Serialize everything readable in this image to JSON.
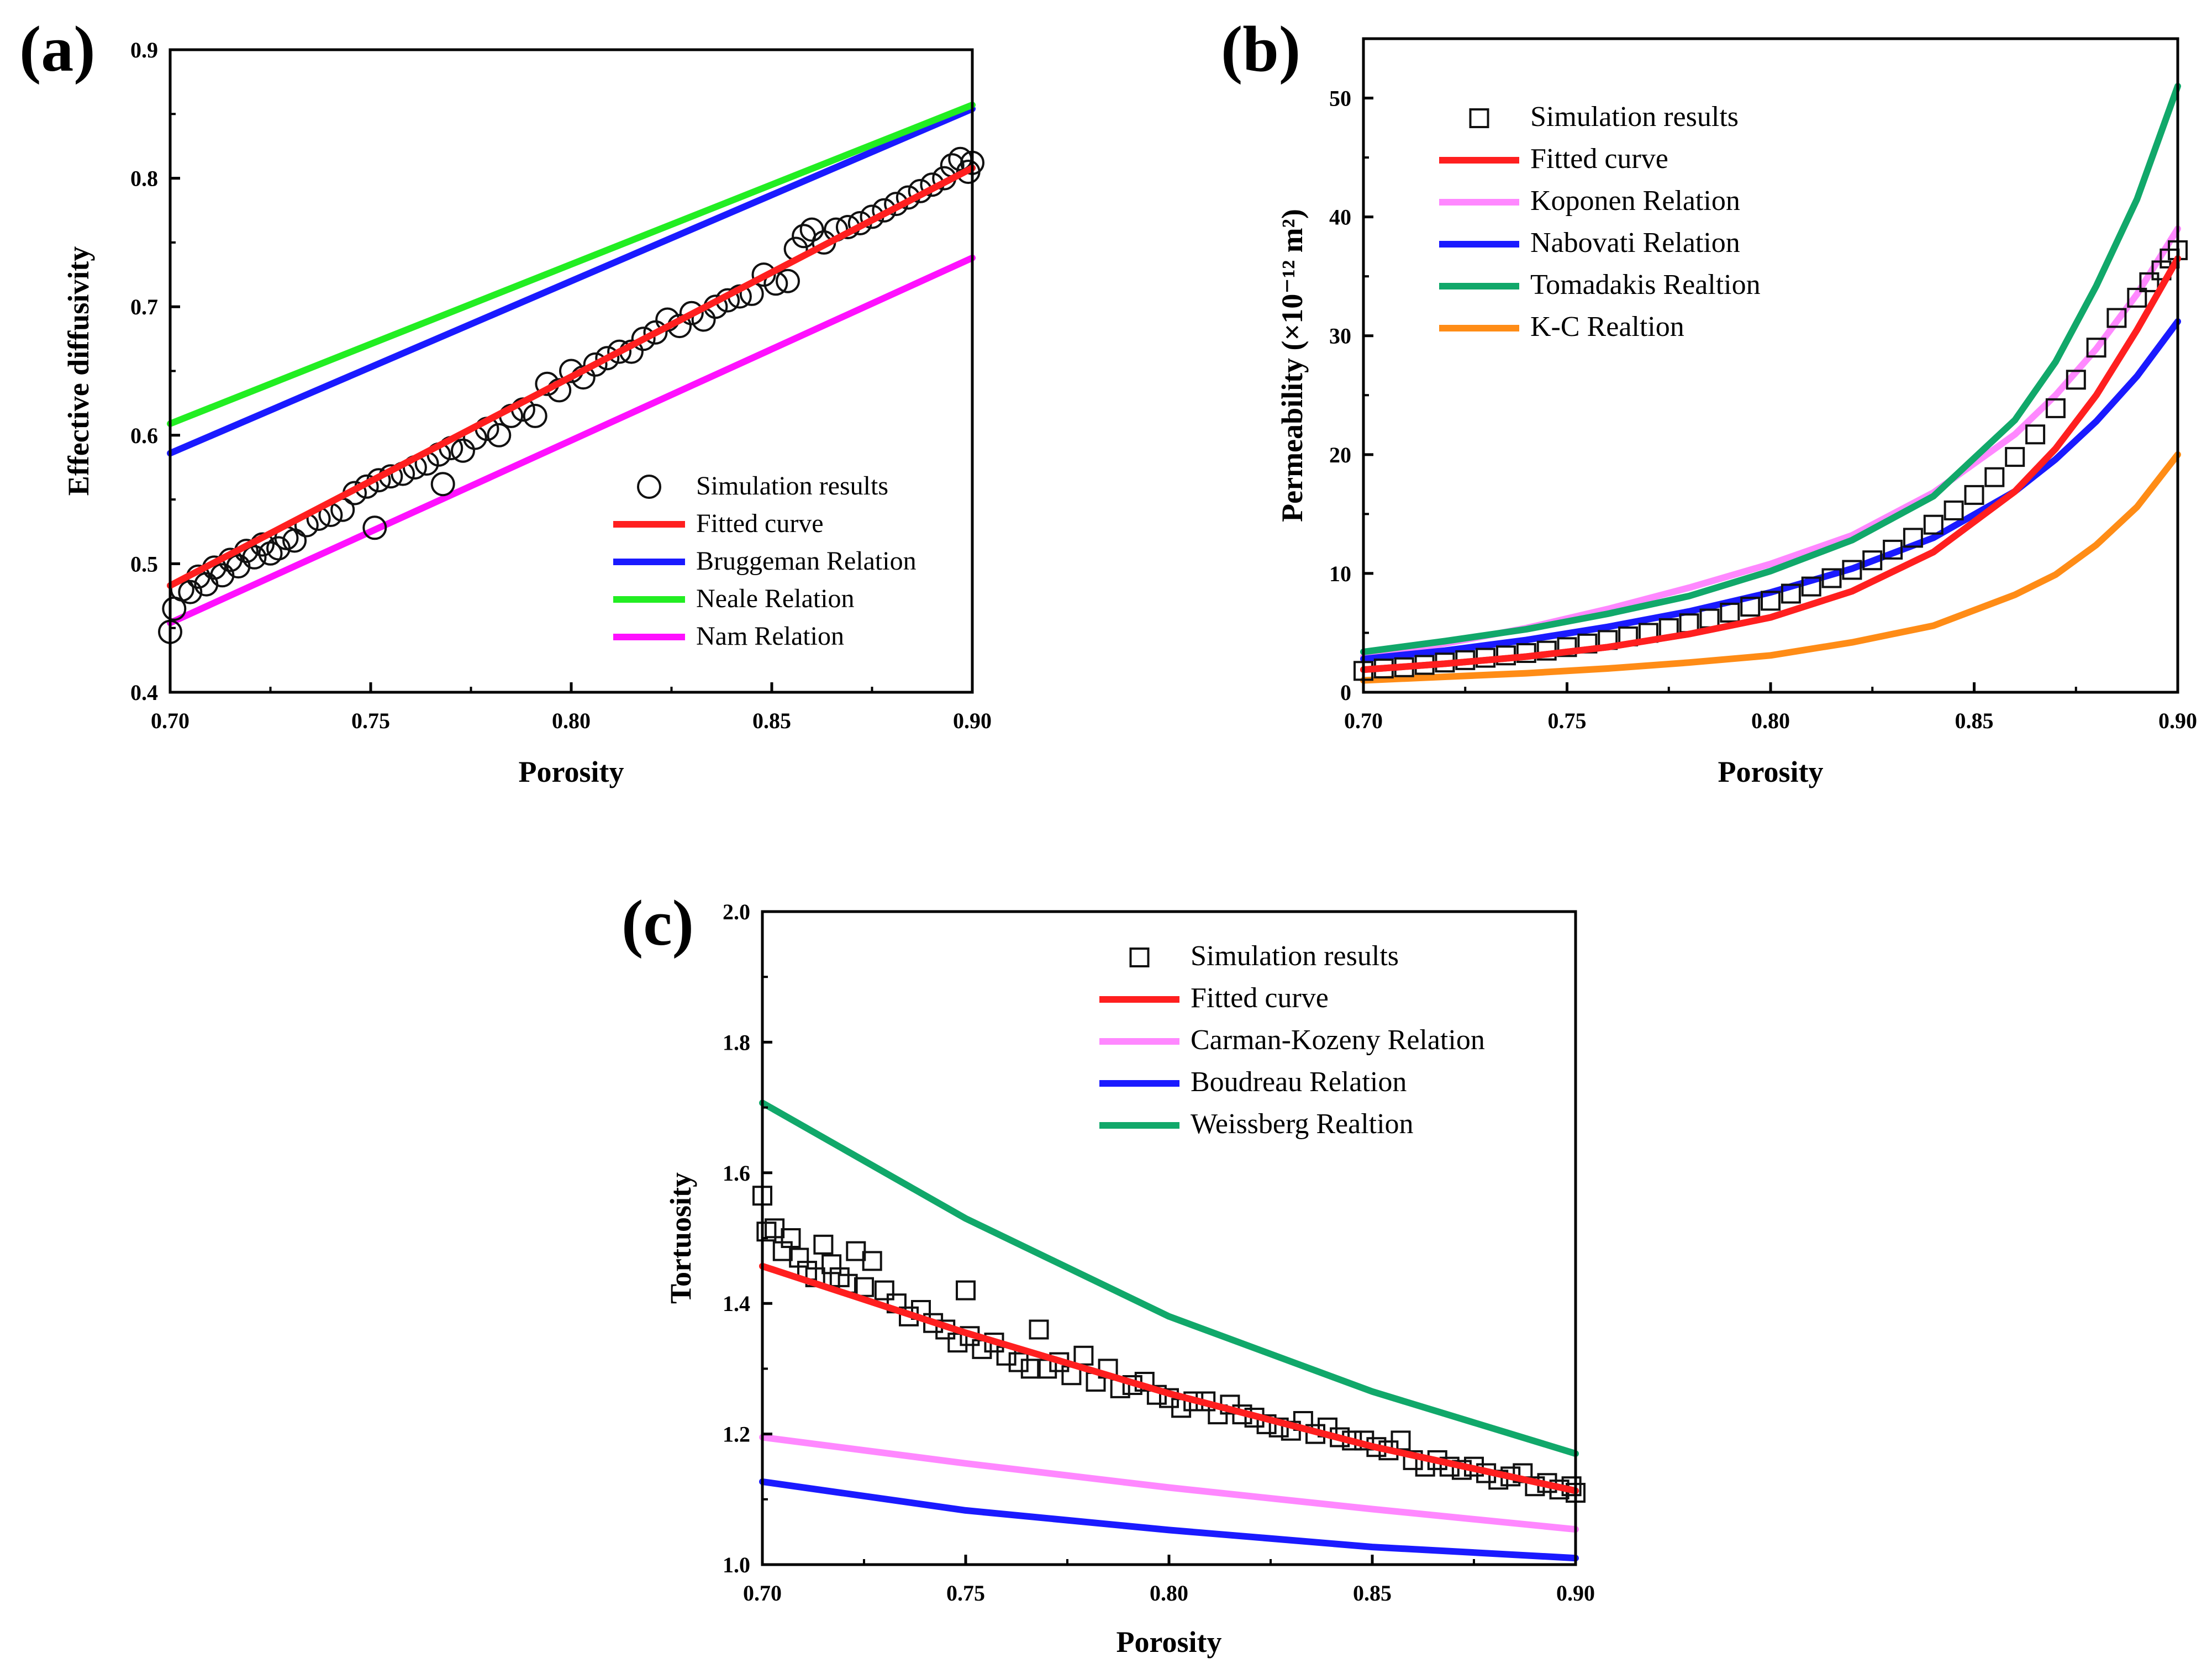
{
  "figure": {
    "panels": [
      "(a)",
      "(b)",
      "(c)"
    ]
  },
  "chart_data": [
    {
      "type": "scatter",
      "panel": "(a)",
      "xlabel": "Porosity",
      "ylabel": "Effective diffusivity",
      "xlim": [
        0.7,
        0.9
      ],
      "ylim": [
        0.4,
        0.9
      ],
      "xticks": [
        "0.70",
        "0.75",
        "0.80",
        "0.85",
        "0.90"
      ],
      "yticks": [
        "0.4",
        "0.5",
        "0.6",
        "0.7",
        "0.8",
        "0.9"
      ],
      "marker": "circle",
      "scatter_name": "Simulation results",
      "scatter": {
        "x": [
          0.7,
          0.701,
          0.703,
          0.705,
          0.707,
          0.709,
          0.711,
          0.713,
          0.715,
          0.717,
          0.719,
          0.721,
          0.723,
          0.725,
          0.727,
          0.729,
          0.731,
          0.734,
          0.737,
          0.74,
          0.743,
          0.746,
          0.749,
          0.751,
          0.752,
          0.755,
          0.758,
          0.761,
          0.764,
          0.767,
          0.768,
          0.77,
          0.773,
          0.776,
          0.779,
          0.782,
          0.785,
          0.788,
          0.791,
          0.794,
          0.797,
          0.8,
          0.803,
          0.806,
          0.809,
          0.812,
          0.815,
          0.818,
          0.821,
          0.824,
          0.827,
          0.83,
          0.833,
          0.836,
          0.839,
          0.842,
          0.845,
          0.848,
          0.851,
          0.854,
          0.856,
          0.858,
          0.86,
          0.863,
          0.866,
          0.869,
          0.872,
          0.875,
          0.878,
          0.881,
          0.884,
          0.887,
          0.89,
          0.893,
          0.895,
          0.897,
          0.899,
          0.9
        ],
        "y": [
          0.447,
          0.465,
          0.48,
          0.478,
          0.49,
          0.484,
          0.497,
          0.491,
          0.503,
          0.498,
          0.51,
          0.505,
          0.515,
          0.508,
          0.512,
          0.52,
          0.518,
          0.53,
          0.535,
          0.538,
          0.542,
          0.555,
          0.56,
          0.528,
          0.565,
          0.568,
          0.57,
          0.575,
          0.578,
          0.585,
          0.562,
          0.59,
          0.588,
          0.598,
          0.605,
          0.6,
          0.615,
          0.62,
          0.615,
          0.64,
          0.635,
          0.65,
          0.645,
          0.655,
          0.66,
          0.665,
          0.665,
          0.675,
          0.68,
          0.69,
          0.685,
          0.695,
          0.69,
          0.7,
          0.705,
          0.708,
          0.71,
          0.725,
          0.718,
          0.72,
          0.745,
          0.755,
          0.76,
          0.75,
          0.76,
          0.762,
          0.765,
          0.77,
          0.775,
          0.78,
          0.785,
          0.79,
          0.795,
          0.8,
          0.81,
          0.815,
          0.805,
          0.812
        ]
      },
      "series": [
        {
          "name": "Fitted curve",
          "color": "#ff1f1f",
          "x": [
            0.7,
            0.9
          ],
          "y": [
            0.483,
            0.808
          ]
        },
        {
          "name": "Bruggeman Relation",
          "color": "#1a1aff",
          "x": [
            0.7,
            0.9
          ],
          "y": [
            0.586,
            0.854
          ]
        },
        {
          "name": "Neale Relation",
          "color": "#22ee22",
          "x": [
            0.7,
            0.9
          ],
          "y": [
            0.609,
            0.857
          ]
        },
        {
          "name": "Nam Relation",
          "color": "#ff10ff",
          "x": [
            0.7,
            0.9
          ],
          "y": [
            0.454,
            0.738
          ]
        }
      ],
      "legend_location": "lower-right"
    },
    {
      "type": "scatter",
      "panel": "(b)",
      "xlabel": "Porosity",
      "ylabel": "Permeability (×10⁻¹² m²)",
      "xlim": [
        0.7,
        0.9
      ],
      "ylim": [
        0,
        55
      ],
      "xticks": [
        "0.70",
        "0.75",
        "0.80",
        "0.85",
        "0.90"
      ],
      "yticks": [
        "0",
        "10",
        "20",
        "30",
        "40",
        "50"
      ],
      "marker": "square",
      "scatter_name": "Simulation results",
      "scatter": {
        "x": [
          0.7,
          0.705,
          0.71,
          0.715,
          0.72,
          0.725,
          0.73,
          0.735,
          0.74,
          0.745,
          0.75,
          0.755,
          0.76,
          0.765,
          0.77,
          0.775,
          0.78,
          0.785,
          0.79,
          0.795,
          0.8,
          0.805,
          0.81,
          0.815,
          0.82,
          0.825,
          0.83,
          0.835,
          0.84,
          0.845,
          0.85,
          0.855,
          0.86,
          0.865,
          0.87,
          0.875,
          0.88,
          0.885,
          0.89,
          0.893,
          0.896,
          0.898,
          0.9
        ],
        "y": [
          1.8,
          2.0,
          2.1,
          2.3,
          2.5,
          2.7,
          2.9,
          3.1,
          3.3,
          3.5,
          3.8,
          4.1,
          4.4,
          4.7,
          5.0,
          5.4,
          5.8,
          6.2,
          6.7,
          7.2,
          7.7,
          8.3,
          8.9,
          9.6,
          10.3,
          11.1,
          12.0,
          13.0,
          14.1,
          15.3,
          16.6,
          18.1,
          19.8,
          21.7,
          23.9,
          26.3,
          29.0,
          31.5,
          33.2,
          34.5,
          35.5,
          36.5,
          37.2
        ]
      },
      "series": [
        {
          "name": "Fitted curve",
          "color": "#ff1f1f",
          "x": [
            0.7,
            0.72,
            0.74,
            0.76,
            0.78,
            0.8,
            0.82,
            0.84,
            0.86,
            0.87,
            0.88,
            0.89,
            0.9
          ],
          "y": [
            1.9,
            2.4,
            3.0,
            3.8,
            4.9,
            6.3,
            8.5,
            11.8,
            16.9,
            20.5,
            25.0,
            30.5,
            36.5
          ]
        },
        {
          "name": "Koponen Relation",
          "color": "#ff88ff",
          "x": [
            0.7,
            0.72,
            0.74,
            0.76,
            0.78,
            0.8,
            0.82,
            0.84,
            0.86,
            0.87,
            0.88,
            0.89,
            0.9
          ],
          "y": [
            3.0,
            4.1,
            5.4,
            7.0,
            8.8,
            10.8,
            13.2,
            16.8,
            21.7,
            25.0,
            28.9,
            33.5,
            39.0
          ]
        },
        {
          "name": "Nabovati Relation",
          "color": "#1a1aff",
          "x": [
            0.7,
            0.72,
            0.74,
            0.76,
            0.78,
            0.8,
            0.82,
            0.84,
            0.86,
            0.87,
            0.88,
            0.89,
            0.9
          ],
          "y": [
            2.8,
            3.5,
            4.4,
            5.5,
            6.8,
            8.4,
            10.4,
            13.0,
            16.9,
            19.6,
            22.8,
            26.6,
            31.2
          ]
        },
        {
          "name": "Tomadakis Realtion",
          "color": "#11a86a",
          "x": [
            0.7,
            0.72,
            0.74,
            0.76,
            0.78,
            0.8,
            0.82,
            0.84,
            0.86,
            0.87,
            0.88,
            0.89,
            0.9
          ],
          "y": [
            3.4,
            4.3,
            5.3,
            6.6,
            8.1,
            10.2,
            12.8,
            16.5,
            22.9,
            27.8,
            34.2,
            41.5,
            51.0
          ]
        },
        {
          "name": "K-C Realtion",
          "color": "#ff8c16",
          "x": [
            0.7,
            0.72,
            0.74,
            0.76,
            0.78,
            0.8,
            0.82,
            0.84,
            0.86,
            0.87,
            0.88,
            0.89,
            0.9
          ],
          "y": [
            1.0,
            1.3,
            1.6,
            2.0,
            2.5,
            3.1,
            4.2,
            5.6,
            8.2,
            9.9,
            12.4,
            15.6,
            20.0
          ]
        }
      ],
      "legend_location": "top-left"
    },
    {
      "type": "scatter",
      "panel": "(c)",
      "xlabel": "Porosity",
      "ylabel": "Tortuosity",
      "xlim": [
        0.7,
        0.9
      ],
      "ylim": [
        1.0,
        2.0
      ],
      "xticks": [
        "0.70",
        "0.75",
        "0.80",
        "0.85",
        "0.90"
      ],
      "yticks": [
        "1.0",
        "1.2",
        "1.4",
        "1.6",
        "1.8",
        "2.0"
      ],
      "marker": "square",
      "scatter_name": "Simulation results",
      "scatter": {
        "x": [
          0.7,
          0.701,
          0.703,
          0.705,
          0.707,
          0.709,
          0.711,
          0.713,
          0.715,
          0.717,
          0.719,
          0.721,
          0.723,
          0.725,
          0.727,
          0.73,
          0.733,
          0.736,
          0.739,
          0.742,
          0.745,
          0.748,
          0.75,
          0.751,
          0.754,
          0.757,
          0.76,
          0.763,
          0.766,
          0.768,
          0.77,
          0.773,
          0.776,
          0.779,
          0.782,
          0.785,
          0.788,
          0.791,
          0.794,
          0.797,
          0.8,
          0.803,
          0.806,
          0.809,
          0.812,
          0.815,
          0.818,
          0.821,
          0.824,
          0.827,
          0.83,
          0.833,
          0.836,
          0.839,
          0.842,
          0.845,
          0.848,
          0.851,
          0.854,
          0.857,
          0.86,
          0.863,
          0.866,
          0.869,
          0.872,
          0.875,
          0.878,
          0.881,
          0.884,
          0.887,
          0.89,
          0.893,
          0.896,
          0.899,
          0.9
        ],
        "y": [
          1.565,
          1.51,
          1.515,
          1.48,
          1.5,
          1.47,
          1.45,
          1.44,
          1.49,
          1.46,
          1.44,
          1.43,
          1.48,
          1.425,
          1.465,
          1.42,
          1.4,
          1.38,
          1.39,
          1.37,
          1.36,
          1.34,
          1.42,
          1.35,
          1.33,
          1.34,
          1.32,
          1.31,
          1.3,
          1.36,
          1.3,
          1.31,
          1.29,
          1.32,
          1.28,
          1.3,
          1.27,
          1.275,
          1.28,
          1.26,
          1.255,
          1.24,
          1.25,
          1.25,
          1.23,
          1.245,
          1.23,
          1.225,
          1.215,
          1.21,
          1.205,
          1.22,
          1.2,
          1.21,
          1.195,
          1.19,
          1.19,
          1.18,
          1.175,
          1.19,
          1.16,
          1.15,
          1.16,
          1.15,
          1.145,
          1.15,
          1.14,
          1.13,
          1.135,
          1.14,
          1.12,
          1.125,
          1.115,
          1.12,
          1.11
        ]
      },
      "series": [
        {
          "name": "Fitted curve",
          "color": "#ff1f1f",
          "x": [
            0.7,
            0.75,
            0.8,
            0.85,
            0.9
          ],
          "y": [
            1.457,
            1.355,
            1.262,
            1.181,
            1.113
          ]
        },
        {
          "name": "Carman-Kozeny Relation",
          "color": "#ff88ff",
          "x": [
            0.7,
            0.75,
            0.8,
            0.85,
            0.9
          ],
          "y": [
            1.195,
            1.155,
            1.118,
            1.085,
            1.054
          ]
        },
        {
          "name": "Boudreau Relation",
          "color": "#1a1aff",
          "x": [
            0.7,
            0.75,
            0.8,
            0.85,
            0.9
          ],
          "y": [
            1.127,
            1.083,
            1.053,
            1.027,
            1.01
          ]
        },
        {
          "name": "Weissberg Realtion",
          "color": "#11a86a",
          "x": [
            0.7,
            0.75,
            0.8,
            0.85,
            0.9
          ],
          "y": [
            1.707,
            1.53,
            1.38,
            1.265,
            1.17
          ]
        }
      ],
      "legend_location": "top-right"
    }
  ]
}
